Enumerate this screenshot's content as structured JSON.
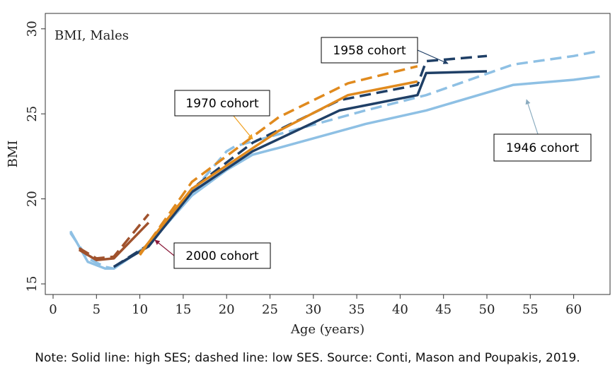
{
  "chart_data": {
    "type": "line",
    "panel_title": "BMI, Males",
    "xlabel": "Age (years)",
    "ylabel": "BMI",
    "xlim": [
      -1,
      64
    ],
    "ylim": [
      14.5,
      30
    ],
    "xticks": [
      0,
      5,
      10,
      15,
      20,
      25,
      30,
      35,
      40,
      45,
      50,
      55,
      60
    ],
    "yticks": [
      15,
      20,
      25,
      30
    ],
    "grid": false,
    "legend": "none",
    "series": [
      {
        "cohort": "1946",
        "ses": "high",
        "color": "#8ec0e4",
        "dash": "solid",
        "x": [
          2,
          4,
          6,
          7,
          11,
          16,
          20,
          23,
          26,
          36,
          43,
          53,
          60,
          63
        ],
        "y": [
          18.1,
          16.3,
          15.9,
          15.9,
          17.3,
          20.2,
          21.7,
          22.6,
          23.0,
          24.4,
          25.2,
          26.7,
          27.0,
          27.2
        ]
      },
      {
        "cohort": "1946",
        "ses": "low",
        "color": "#8ec0e4",
        "dash": "dashed",
        "x": [
          2,
          4,
          6,
          7,
          11,
          16,
          20,
          21,
          26,
          36,
          43,
          53,
          60,
          63
        ],
        "y": [
          18.0,
          16.5,
          16.0,
          15.9,
          17.3,
          20.4,
          22.8,
          23.1,
          23.8,
          25.2,
          26.1,
          27.9,
          28.4,
          28.7
        ]
      },
      {
        "cohort": "1958",
        "ses": "high",
        "color": "#1f3f66",
        "dash": "solid",
        "x": [
          7,
          11,
          16,
          23,
          33,
          42,
          43,
          50
        ],
        "y": [
          16.0,
          17.2,
          20.4,
          22.8,
          25.2,
          26.1,
          27.4,
          27.5
        ]
      },
      {
        "cohort": "1958",
        "ses": "low",
        "color": "#1f3f66",
        "dash": "dashed",
        "x": [
          7,
          11,
          16,
          23,
          33,
          42,
          43,
          50
        ],
        "y": [
          16.0,
          17.3,
          20.6,
          23.3,
          25.8,
          26.7,
          28.1,
          28.4
        ]
      },
      {
        "cohort": "1970",
        "ses": "high",
        "color": "#e08a1e",
        "dash": "solid",
        "x": [
          10,
          16,
          26,
          34,
          42
        ],
        "y": [
          16.8,
          20.6,
          24.0,
          26.1,
          26.9
        ]
      },
      {
        "cohort": "1970",
        "ses": "low",
        "color": "#e08a1e",
        "dash": "dashed",
        "x": [
          10,
          16,
          26,
          34,
          42
        ],
        "y": [
          16.7,
          21.0,
          24.8,
          26.8,
          27.8
        ]
      },
      {
        "cohort": "2000",
        "ses": "high",
        "color": "#a0522d",
        "dash": "solid",
        "x": [
          3,
          5,
          7,
          11
        ],
        "y": [
          17.0,
          16.4,
          16.5,
          18.6
        ]
      },
      {
        "cohort": "2000",
        "ses": "low",
        "color": "#a0522d",
        "dash": "dashed",
        "x": [
          3,
          5,
          7,
          11
        ],
        "y": [
          17.1,
          16.5,
          16.6,
          19.1
        ]
      }
    ],
    "annotations": [
      {
        "text": "1958 cohort",
        "color": "#1f3f66"
      },
      {
        "text": "1970 cohort",
        "color": "#f0a020"
      },
      {
        "text": "1946 cohort",
        "color": "#8aabbf"
      },
      {
        "text": "2000 cohort",
        "color": "#8b1a3a"
      }
    ]
  },
  "note": "Note: Solid line: high SES; dashed line: low SES. Source: Conti, Mason and Poupakis, 2019."
}
